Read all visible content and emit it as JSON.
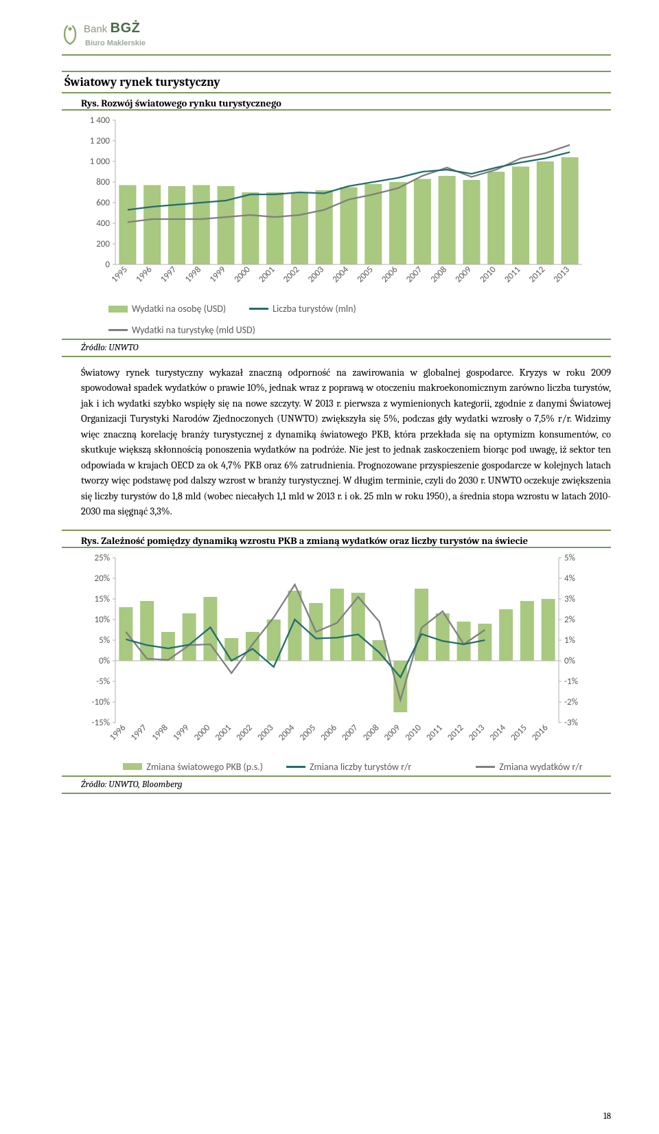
{
  "logo": {
    "bank": "Bank",
    "bgz": "BGŻ",
    "sub": "Biuro Maklerskie"
  },
  "section_title": "Światowy rynek turystyczny",
  "fig1": {
    "title": "Rys. Rozwój światowego rynku turystycznego",
    "source": "Źródło: UNWTO",
    "legend": {
      "bars": "Wydatki na osobę (USD)",
      "line1": "Liczba turystów (mln)",
      "line2": "Wydatki na turystykę (mld USD)"
    },
    "chart": {
      "type": "bar_line",
      "x_labels": [
        "1995",
        "1996",
        "1997",
        "1998",
        "1999",
        "2000",
        "2001",
        "2002",
        "2003",
        "2004",
        "2005",
        "2006",
        "2007",
        "2008",
        "2009",
        "2010",
        "2011",
        "2012",
        "2013"
      ],
      "bars": [
        770,
        770,
        760,
        770,
        760,
        700,
        700,
        700,
        720,
        750,
        780,
        800,
        830,
        860,
        820,
        900,
        950,
        1000,
        1040
      ],
      "line_tourists": [
        530,
        560,
        580,
        600,
        620,
        680,
        680,
        700,
        690,
        760,
        800,
        840,
        900,
        920,
        880,
        940,
        990,
        1030,
        1090
      ],
      "line_spend": [
        410,
        440,
        440,
        440,
        460,
        480,
        460,
        480,
        530,
        630,
        680,
        740,
        860,
        940,
        850,
        920,
        1030,
        1080,
        1160
      ],
      "ylim": [
        0,
        1400
      ],
      "ytick_step": 200,
      "bar_color": "#a8c97f",
      "line1_color": "#236d6b",
      "line2_color": "#7f7f7f",
      "axis_color": "#b0b0b0",
      "text_color": "#595959"
    }
  },
  "body_text": "Światowy rynek turystyczny wykazał znaczną odporność na zawirowania w globalnej gospodarce. Kryzys w roku 2009 spowodował spadek wydatków o prawie 10%, jednak wraz z poprawą w otoczeniu makroekonomicznym zarówno liczba turystów, jak i ich wydatki szybko wspięły się na nowe szczyty. W 2013 r. pierwsza z wymienionych kategorii, zgodnie z danymi Światowej Organizacji Turystyki Narodów Zjednoczonych (UNWTO) zwiększyła się 5%, podczas gdy wydatki wzrosły o 7,5% r/r. Widzimy więc znaczną korelację branży turystycznej z dynamiką światowego PKB, która przekłada się na optymizm konsumentów, co skutkuje większą skłonnością ponoszenia wydatków na podróże. Nie jest to jednak zaskoczeniem biorąc pod uwagę, iż sektor ten odpowiada w krajach OECD za ok 4,7% PKB oraz 6% zatrudnienia. Prognozowane przyspieszenie gospodarcze w kolejnych latach tworzy więc podstawę pod dalszy wzrost w branży turystycznej. W długim terminie, czyli do 2030 r. UNWTO oczekuje zwiększenia się liczby turystów do 1,8 mld (wobec niecałych 1,1 mld w 2013 r. i ok. 25 mln w roku 1950), a średnia stopa wzrostu w latach 2010-2030 ma sięgnąć 3,3%.",
  "fig2": {
    "title": "Rys. Zależność pomiędzy dynamiką wzrostu PKB a zmianą wydatków oraz liczby turystów na świecie",
    "source": "Źródło: UNWTO, Bloomberg",
    "legend": {
      "bars": "Zmiana światowego PKB (p.s.)",
      "line1": "Zmiana liczby turystów r/r",
      "line2": "Zmiana wydatków r/r"
    },
    "chart": {
      "type": "bar_line_dual",
      "x_labels": [
        "1996",
        "1997",
        "1998",
        "1999",
        "2000",
        "2001",
        "2002",
        "2003",
        "2004",
        "2005",
        "2006",
        "2007",
        "2008",
        "2009",
        "2010",
        "2011",
        "2012",
        "2013",
        "2014",
        "2015",
        "2016"
      ],
      "bars_gdp": [
        2.6,
        2.9,
        1.4,
        2.3,
        3.1,
        1.1,
        1.4,
        2.0,
        3.4,
        2.8,
        3.5,
        3.3,
        1.0,
        -2.5,
        3.5,
        2.3,
        1.9,
        1.8,
        2.5,
        2.9,
        3.0
      ],
      "line_tourists": [
        5.2,
        3.8,
        3.0,
        3.9,
        8.1,
        0.0,
        2.9,
        -1.5,
        10.0,
        5.4,
        5.6,
        6.4,
        2.0,
        -4.0,
        6.5,
        4.8,
        4.0,
        5.0,
        null,
        null,
        null
      ],
      "line_spend": [
        7.0,
        0.5,
        0.2,
        3.8,
        4.0,
        -3.0,
        4.0,
        10.5,
        18.5,
        7.0,
        9.2,
        15.5,
        9.5,
        -9.5,
        8.0,
        12.0,
        4.0,
        7.5,
        null,
        null,
        null
      ],
      "ylim_left": [
        -15,
        25
      ],
      "ytick_left_step": 5,
      "ylim_right": [
        -3,
        5
      ],
      "ytick_right_step": 1,
      "bar_color": "#a8c97f",
      "line1_color": "#236d6b",
      "line2_color": "#7f7f7f",
      "axis_color": "#b0b0b0",
      "text_color": "#595959"
    }
  },
  "page_number": "18"
}
